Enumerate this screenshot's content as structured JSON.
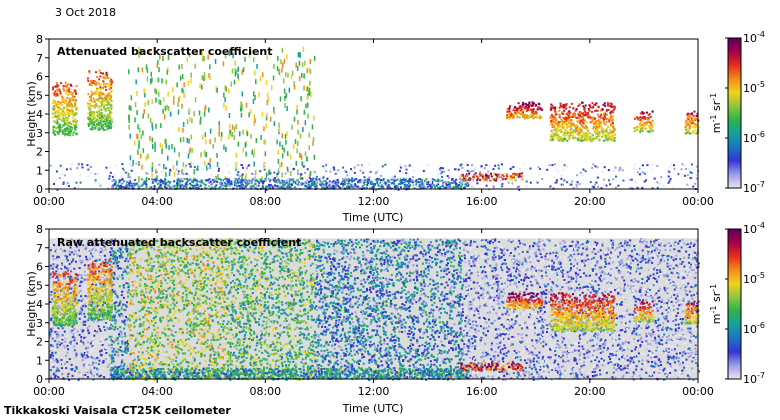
{
  "date_label": "3 Oct 2018",
  "footer": "Tikkakoski Vaisala CT25K ceilometer",
  "colors": {
    "colormap": [
      "#e6e6f0",
      "#9d9de6",
      "#3434d6",
      "#1a76c2",
      "#16a0a0",
      "#2db34a",
      "#8cc63f",
      "#f2d21b",
      "#f28c1b",
      "#e62e1b",
      "#a3004d",
      "#5a005a"
    ],
    "background_gray": "#dcdcdc"
  },
  "chart_data": [
    {
      "type": "heatmap",
      "title": "Attenuated backscatter coefficient",
      "xlabel": "Time (UTC)",
      "ylabel": "Height (km)",
      "xticks": [
        "00:00",
        "04:00",
        "08:00",
        "12:00",
        "16:00",
        "20:00",
        "00:00"
      ],
      "xlim_hours": [
        0,
        24
      ],
      "yticks": [
        "0",
        "1",
        "2",
        "3",
        "4",
        "5",
        "6",
        "7",
        "8"
      ],
      "ylim_km": [
        0,
        8
      ],
      "colorbar": {
        "scale": "log",
        "ticks": [
          "10",
          "10",
          "10",
          "10"
        ],
        "exponents": [
          "-7",
          "-6",
          "-5",
          "-4"
        ],
        "unit_label": "m",
        "unit_exp1": "-1",
        "unit_sr": " sr",
        "unit_exp2": "-1"
      },
      "features": [
        {
          "kind": "cloud",
          "t0": 0.1,
          "t1": 1.0,
          "h0": 2.9,
          "h1": 5.8,
          "level": 7
        },
        {
          "kind": "cloud",
          "t0": 1.4,
          "t1": 2.3,
          "h0": 3.2,
          "h1": 6.4,
          "level": 7
        },
        {
          "kind": "streaks",
          "t0": 2.9,
          "t1": 9.8,
          "h0": 0.5,
          "h1": 7.6,
          "level": 6
        },
        {
          "kind": "cloud",
          "t0": 16.9,
          "t1": 18.2,
          "h0": 3.8,
          "h1": 4.7,
          "level": 9
        },
        {
          "kind": "cloud",
          "t0": 18.5,
          "t1": 20.9,
          "h0": 2.6,
          "h1": 4.7,
          "level": 8
        },
        {
          "kind": "cloud",
          "t0": 21.6,
          "t1": 22.3,
          "h0": 3.1,
          "h1": 4.2,
          "level": 8
        },
        {
          "kind": "cloud",
          "t0": 23.5,
          "t1": 24.0,
          "h0": 3.0,
          "h1": 4.2,
          "level": 8
        },
        {
          "kind": "layer",
          "t0": 2.3,
          "t1": 15.5,
          "h0": 0.05,
          "h1": 0.6,
          "level": 3
        },
        {
          "kind": "layer",
          "t0": 15.2,
          "t1": 17.5,
          "h0": 0.5,
          "h1": 0.9,
          "level": 9
        },
        {
          "kind": "haze",
          "t0": 0.0,
          "t1": 24.0,
          "h0": 0.0,
          "h1": 1.4,
          "level": 1
        }
      ]
    },
    {
      "type": "heatmap",
      "title": "Raw attenuated backscatter coefficient",
      "xlabel": "Time (UTC)",
      "ylabel": "Height (km)",
      "xticks": [
        "00:00",
        "04:00",
        "08:00",
        "12:00",
        "16:00",
        "20:00",
        "00:00"
      ],
      "xlim_hours": [
        0,
        24
      ],
      "yticks": [
        "0",
        "1",
        "2",
        "3",
        "4",
        "5",
        "6",
        "7",
        "8"
      ],
      "ylim_km": [
        0,
        8
      ],
      "colorbar": {
        "scale": "log",
        "ticks": [
          "10",
          "10",
          "10",
          "10"
        ],
        "exponents": [
          "-7",
          "-6",
          "-5",
          "-4"
        ],
        "unit_label": "m",
        "unit_exp1": "-1",
        "unit_sr": " sr",
        "unit_exp2": "-1"
      },
      "features": [
        {
          "kind": "noise",
          "t0": 0.0,
          "t1": 2.2,
          "h0": 0.0,
          "h1": 7.5,
          "level": 1
        },
        {
          "kind": "noise",
          "t0": 2.2,
          "t1": 2.9,
          "h0": 0.0,
          "h1": 7.5,
          "level": 3
        },
        {
          "kind": "noise",
          "t0": 2.9,
          "t1": 6.5,
          "h0": 0.0,
          "h1": 7.5,
          "level": 6
        },
        {
          "kind": "noise",
          "t0": 6.5,
          "t1": 9.8,
          "h0": 0.0,
          "h1": 7.5,
          "level": 5
        },
        {
          "kind": "noise",
          "t0": 9.8,
          "t1": 15.3,
          "h0": 0.0,
          "h1": 7.5,
          "level": 3
        },
        {
          "kind": "noise",
          "t0": 15.3,
          "t1": 24.0,
          "h0": 0.0,
          "h1": 7.5,
          "level": 1
        },
        {
          "kind": "cloud",
          "t0": 0.1,
          "t1": 1.0,
          "h0": 2.9,
          "h1": 5.8,
          "level": 7
        },
        {
          "kind": "cloud",
          "t0": 1.4,
          "t1": 2.3,
          "h0": 3.2,
          "h1": 6.4,
          "level": 7
        },
        {
          "kind": "cloud",
          "t0": 16.9,
          "t1": 18.2,
          "h0": 3.8,
          "h1": 4.7,
          "level": 9
        },
        {
          "kind": "cloud",
          "t0": 18.5,
          "t1": 20.9,
          "h0": 2.6,
          "h1": 4.7,
          "level": 8
        },
        {
          "kind": "cloud",
          "t0": 21.6,
          "t1": 22.3,
          "h0": 3.1,
          "h1": 4.2,
          "level": 8
        },
        {
          "kind": "cloud",
          "t0": 23.5,
          "t1": 24.0,
          "h0": 3.0,
          "h1": 4.2,
          "level": 8
        },
        {
          "kind": "layer",
          "t0": 2.3,
          "t1": 15.5,
          "h0": 0.05,
          "h1": 0.6,
          "level": 4
        },
        {
          "kind": "layer",
          "t0": 15.2,
          "t1": 17.5,
          "h0": 0.5,
          "h1": 0.9,
          "level": 9
        }
      ]
    }
  ]
}
